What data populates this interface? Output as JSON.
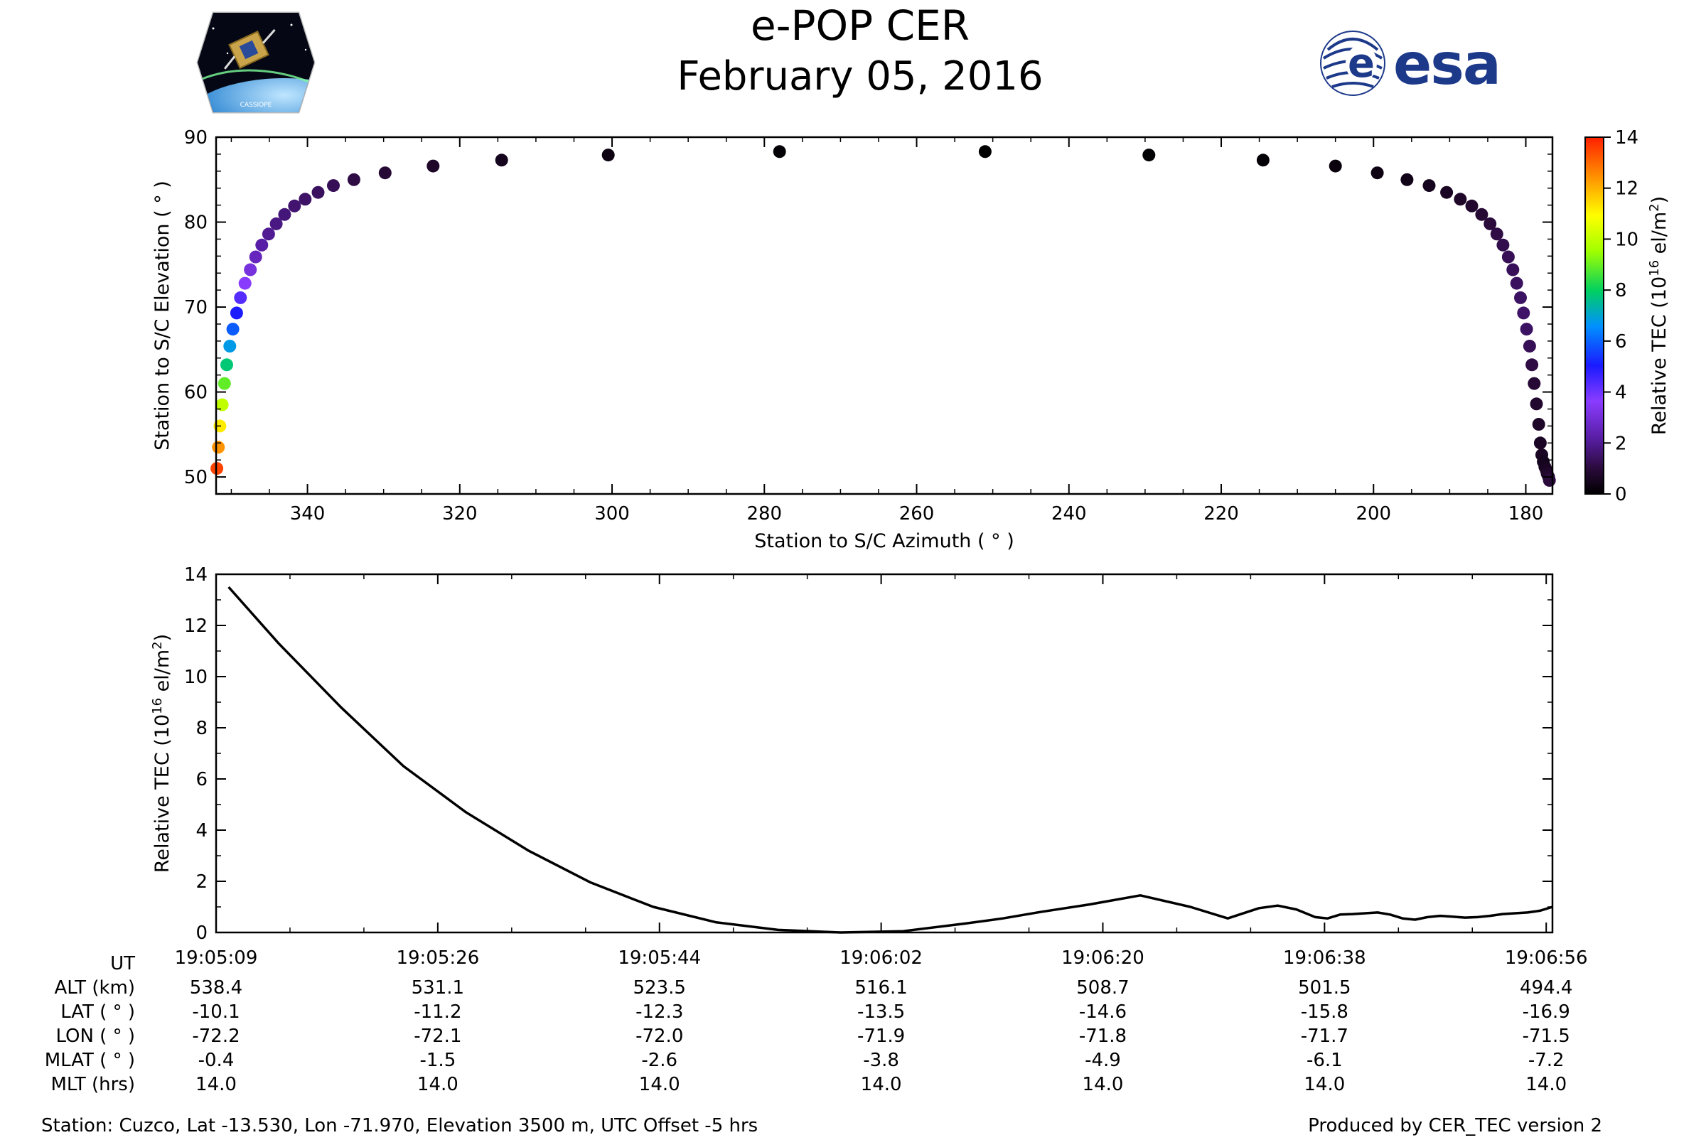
{
  "header": {
    "title": "e-POP CER",
    "date": "February 05, 2016",
    "left_logo_text": "CASSIOPE",
    "right_logo_text": "esa"
  },
  "chart_data": [
    {
      "type": "scatter",
      "name": "elevation-vs-azimuth",
      "xlabel": "Station to S/C Azimuth ( ° )",
      "ylabel": "Station to S/C Elevation ( ° )",
      "xlim": [
        352,
        176.5
      ],
      "ylim": [
        48,
        90
      ],
      "x_ticks": [
        340,
        320,
        300,
        280,
        260,
        240,
        220,
        200,
        180
      ],
      "y_ticks": [
        50,
        60,
        70,
        80,
        90
      ],
      "grid": false,
      "colorbar": {
        "label": "Relative TEC (10",
        "label_sup": "16",
        "label_end": " el/m",
        "label_sup2": "2",
        "label_close": ")",
        "range": [
          0,
          14
        ],
        "ticks": [
          0,
          2,
          4,
          6,
          8,
          10,
          12,
          14
        ],
        "colormap": "gnuplot-rainbow"
      },
      "points_azimuth": [
        351.9,
        351.7,
        351.5,
        351.2,
        350.9,
        350.6,
        350.2,
        349.8,
        349.3,
        348.8,
        348.2,
        347.5,
        346.8,
        346.0,
        345.1,
        344.1,
        343.0,
        341.7,
        340.3,
        338.6,
        336.6,
        333.9,
        329.8,
        323.5,
        314.5,
        300.5,
        278.0,
        251.0,
        229.5,
        214.5,
        205.0,
        199.5,
        195.6,
        192.7,
        190.4,
        188.6,
        187.1,
        185.8,
        184.7,
        183.8,
        183.0,
        182.3,
        181.7,
        181.2,
        180.7,
        180.3,
        179.9,
        179.5,
        179.2,
        178.9,
        178.6,
        178.3,
        178.1,
        177.9,
        177.7,
        177.5,
        177.3,
        177.2,
        177.0,
        176.9
      ],
      "points_elevation": [
        51.0,
        53.5,
        56.0,
        58.5,
        61.0,
        63.2,
        65.4,
        67.4,
        69.3,
        71.1,
        72.8,
        74.4,
        75.9,
        77.3,
        78.6,
        79.8,
        80.9,
        81.9,
        82.7,
        83.5,
        84.3,
        85.0,
        85.8,
        86.6,
        87.3,
        87.9,
        88.3,
        88.3,
        87.9,
        87.3,
        86.6,
        85.8,
        85.0,
        84.3,
        83.5,
        82.7,
        81.9,
        80.9,
        79.8,
        78.6,
        77.3,
        75.9,
        74.4,
        72.8,
        71.1,
        69.3,
        67.4,
        65.4,
        63.2,
        61.0,
        58.6,
        56.2,
        54.0,
        52.6,
        51.8,
        51.2,
        50.8,
        50.4,
        50.0,
        49.6
      ],
      "points_tec": [
        13.5,
        12.4,
        11.2,
        10.0,
        8.9,
        7.8,
        6.8,
        5.9,
        5.0,
        4.3,
        3.6,
        3.1,
        2.6,
        2.2,
        2.0,
        1.8,
        1.7,
        1.6,
        1.5,
        1.4,
        1.3,
        1.1,
        0.9,
        0.7,
        0.5,
        0.3,
        0.1,
        0.0,
        0.05,
        0.1,
        0.2,
        0.3,
        0.4,
        0.5,
        0.6,
        0.7,
        0.8,
        0.9,
        1.0,
        1.1,
        1.2,
        1.3,
        1.35,
        1.4,
        1.45,
        1.5,
        1.45,
        1.3,
        1.1,
        0.9,
        0.8,
        0.7,
        0.6,
        0.6,
        0.5,
        0.5,
        0.6,
        0.7,
        0.8,
        1.0
      ]
    },
    {
      "type": "line",
      "name": "tec-vs-time",
      "ylabel": "Relative TEC (10",
      "ylabel_sup": "16",
      "ylabel_end": " el/m",
      "ylabel_sup2": "2",
      "ylabel_close": ")",
      "ylim": [
        0,
        14
      ],
      "y_ticks": [
        0,
        2,
        4,
        6,
        8,
        10,
        12,
        14
      ],
      "x_range_seconds": [
        0,
        107
      ],
      "x_tick_seconds": [
        0,
        17.75,
        35.5,
        53.25,
        71,
        88.75,
        106.5
      ],
      "grid": false,
      "series": [
        {
          "x_seconds": [
            1,
            5,
            10,
            15,
            20,
            25,
            30,
            35,
            40,
            45,
            50,
            55,
            60,
            63,
            66,
            70,
            74,
            78,
            81,
            83.5,
            85,
            86.5,
            88,
            89,
            90,
            91,
            92,
            93,
            94,
            95,
            96,
            97,
            98,
            99,
            100,
            101,
            102,
            103,
            104,
            105,
            106,
            107
          ],
          "values": [
            13.5,
            11.3,
            8.8,
            6.5,
            4.7,
            3.2,
            1.95,
            1.0,
            0.4,
            0.1,
            0.0,
            0.05,
            0.35,
            0.55,
            0.8,
            1.1,
            1.45,
            1.0,
            0.55,
            0.95,
            1.05,
            0.9,
            0.6,
            0.55,
            0.7,
            0.72,
            0.75,
            0.78,
            0.7,
            0.55,
            0.5,
            0.6,
            0.65,
            0.62,
            0.58,
            0.6,
            0.65,
            0.72,
            0.75,
            0.78,
            0.85,
            1.0
          ]
        }
      ]
    }
  ],
  "ephemeris": {
    "row_labels": [
      "UT",
      "ALT (km)",
      "LAT ( ° )",
      "LON ( ° )",
      "MLAT ( ° )",
      "MLT (hrs)"
    ],
    "columns": [
      [
        "19:05:09",
        "538.4",
        "-10.1",
        "-72.2",
        "-0.4",
        "14.0"
      ],
      [
        "19:05:26",
        "531.1",
        "-11.2",
        "-72.1",
        "-1.5",
        "14.0"
      ],
      [
        "19:05:44",
        "523.5",
        "-12.3",
        "-72.0",
        "-2.6",
        "14.0"
      ],
      [
        "19:06:02",
        "516.1",
        "-13.5",
        "-71.9",
        "-3.8",
        "14.0"
      ],
      [
        "19:06:20",
        "508.7",
        "-14.6",
        "-71.8",
        "-4.9",
        "14.0"
      ],
      [
        "19:06:38",
        "501.5",
        "-15.8",
        "-71.7",
        "-6.1",
        "14.0"
      ],
      [
        "19:06:56",
        "494.4",
        "-16.9",
        "-71.5",
        "-7.2",
        "14.0"
      ]
    ]
  },
  "footer": {
    "station": "Station: Cuzco, Lat -13.530, Lon -71.970, Elevation 3500 m, UTC Offset -5 hrs",
    "produced": "Produced by CER_TEC version 2"
  },
  "colors": {
    "axis": "#000000",
    "line": "#000000",
    "esa_blue": "#1d3a8a"
  }
}
